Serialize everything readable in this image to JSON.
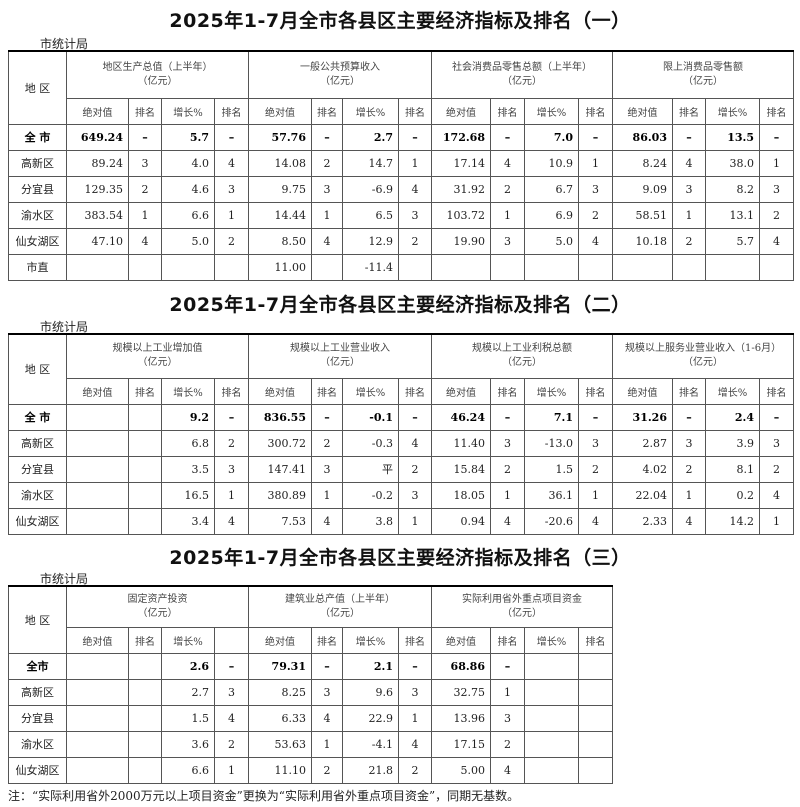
{
  "tables": [
    {
      "title": "2025年1-7月全市各县区主要经济指标及排名（一）",
      "source": "市统计局",
      "region_header": "地  区",
      "groups": [
        {
          "name": "地区生产总值（上半年）",
          "unit": "（亿元）",
          "subheaders": [
            "绝对值",
            "排名",
            "增长%",
            "排名"
          ]
        },
        {
          "name": "一般公共预算收入",
          "unit": "（亿元）",
          "subheaders": [
            "绝对值",
            "排名",
            "增长%",
            "排名"
          ]
        },
        {
          "name": "社会消费品零售总额（上半年）",
          "unit": "（亿元）",
          "subheaders": [
            "绝对值",
            "排名",
            "增长%",
            "排名"
          ]
        },
        {
          "name": "限上消费品零售额",
          "unit": "（亿元）",
          "subheaders": [
            "绝对值",
            "排名",
            "增长%",
            "排名"
          ]
        }
      ],
      "rows": [
        {
          "region": "全  市",
          "bold": true,
          "cells": [
            "649.24",
            "–",
            "5.7",
            "–",
            "57.76",
            "–",
            "2.7",
            "–",
            "172.68",
            "–",
            "7.0",
            "–",
            "86.03",
            "–",
            "13.5",
            "–"
          ]
        },
        {
          "region": "高新区",
          "cells": [
            "89.24",
            "3",
            "4.0",
            "4",
            "14.08",
            "2",
            "14.7",
            "1",
            "17.14",
            "4",
            "10.9",
            "1",
            "8.24",
            "4",
            "38.0",
            "1"
          ]
        },
        {
          "region": "分宜县",
          "cells": [
            "129.35",
            "2",
            "4.6",
            "3",
            "9.75",
            "3",
            "-6.9",
            "4",
            "31.92",
            "2",
            "6.7",
            "3",
            "9.09",
            "3",
            "8.2",
            "3"
          ]
        },
        {
          "region": "渝水区",
          "cells": [
            "383.54",
            "1",
            "6.6",
            "1",
            "14.44",
            "1",
            "6.5",
            "3",
            "103.72",
            "1",
            "6.9",
            "2",
            "58.51",
            "1",
            "13.1",
            "2"
          ]
        },
        {
          "region": "仙女湖区",
          "cells": [
            "47.10",
            "4",
            "5.0",
            "2",
            "8.50",
            "4",
            "12.9",
            "2",
            "19.90",
            "3",
            "5.0",
            "4",
            "10.18",
            "2",
            "5.7",
            "4"
          ]
        },
        {
          "region": "市直",
          "cells": [
            "",
            "",
            "",
            "",
            "11.00",
            "",
            "-11.4",
            "",
            "",
            "",
            "",
            "",
            "",
            "",
            "",
            ""
          ]
        }
      ]
    },
    {
      "title": "2025年1-7月全市各县区主要经济指标及排名（二）",
      "source": "市统计局",
      "region_header": "地  区",
      "groups": [
        {
          "name": "规模以上工业增加值",
          "unit": "（亿元）",
          "subheaders": [
            "绝对值",
            "排名",
            "增长%",
            "排名"
          ]
        },
        {
          "name": "规模以上工业营业收入",
          "unit": "（亿元）",
          "subheaders": [
            "绝对值",
            "排名",
            "增长%",
            "排名"
          ]
        },
        {
          "name": "规模以上工业利税总额",
          "unit": "（亿元）",
          "subheaders": [
            "绝对值",
            "排名",
            "增长%",
            "排名"
          ]
        },
        {
          "name": "规模以上服务业营业收入（1-6月）",
          "unit": "（亿元）",
          "subheaders": [
            "绝对值",
            "排名",
            "增长%",
            "排名"
          ]
        }
      ],
      "rows": [
        {
          "region": "全  市",
          "bold": true,
          "cells": [
            "",
            "",
            "9.2",
            "–",
            "836.55",
            "–",
            "-0.1",
            "–",
            "46.24",
            "–",
            "7.1",
            "–",
            "31.26",
            "–",
            "2.4",
            "–"
          ]
        },
        {
          "region": "高新区",
          "cells": [
            "",
            "",
            "6.8",
            "2",
            "300.72",
            "2",
            "-0.3",
            "4",
            "11.40",
            "3",
            "-13.0",
            "3",
            "2.87",
            "3",
            "3.9",
            "3"
          ]
        },
        {
          "region": "分宜县",
          "cells": [
            "",
            "",
            "3.5",
            "3",
            "147.41",
            "3",
            "平",
            "2",
            "15.84",
            "2",
            "1.5",
            "2",
            "4.02",
            "2",
            "8.1",
            "2"
          ]
        },
        {
          "region": "渝水区",
          "cells": [
            "",
            "",
            "16.5",
            "1",
            "380.89",
            "1",
            "-0.2",
            "3",
            "18.05",
            "1",
            "36.1",
            "1",
            "22.04",
            "1",
            "0.2",
            "4"
          ]
        },
        {
          "region": "仙女湖区",
          "cells": [
            "",
            "",
            "3.4",
            "4",
            "7.53",
            "4",
            "3.8",
            "1",
            "0.94",
            "4",
            "-20.6",
            "4",
            "2.33",
            "4",
            "14.2",
            "1"
          ]
        }
      ]
    },
    {
      "title": "2025年1-7月全市各县区主要经济指标及排名（三）",
      "source": "市统计局",
      "region_header": "地  区",
      "groups": [
        {
          "name": "固定资产投资",
          "unit": "（亿元）",
          "subheaders": [
            "绝对值",
            "排名",
            "增长%",
            ""
          ]
        },
        {
          "name": "建筑业总产值（上半年）",
          "unit": "（亿元）",
          "subheaders": [
            "绝对值",
            "排名",
            "增长%",
            "排名"
          ]
        },
        {
          "name": "实际利用省外重点项目资金",
          "unit": "（亿元）",
          "subheaders": [
            "绝对值",
            "排名",
            "增长%",
            "排名"
          ]
        }
      ],
      "rows": [
        {
          "region": "全市",
          "bold": true,
          "cells": [
            "",
            "",
            "2.6",
            "–",
            "79.31",
            "–",
            "2.1",
            "–",
            "68.86",
            "–",
            "",
            ""
          ]
        },
        {
          "region": "高新区",
          "cells": [
            "",
            "",
            "2.7",
            "3",
            "8.25",
            "3",
            "9.6",
            "3",
            "32.75",
            "1",
            "",
            ""
          ]
        },
        {
          "region": "分宜县",
          "cells": [
            "",
            "",
            "1.5",
            "4",
            "6.33",
            "4",
            "22.9",
            "1",
            "13.96",
            "3",
            "",
            ""
          ]
        },
        {
          "region": "渝水区",
          "cells": [
            "",
            "",
            "3.6",
            "2",
            "53.63",
            "1",
            "-4.1",
            "4",
            "17.15",
            "2",
            "",
            ""
          ]
        },
        {
          "region": "仙女湖区",
          "cells": [
            "",
            "",
            "6.6",
            "1",
            "11.10",
            "2",
            "21.8",
            "2",
            "5.00",
            "4",
            "",
            ""
          ]
        }
      ]
    }
  ],
  "note": "注：“实际利用省外2000万元以上项目资金”更换为“实际利用省外重点项目资金”，同期无基数。"
}
